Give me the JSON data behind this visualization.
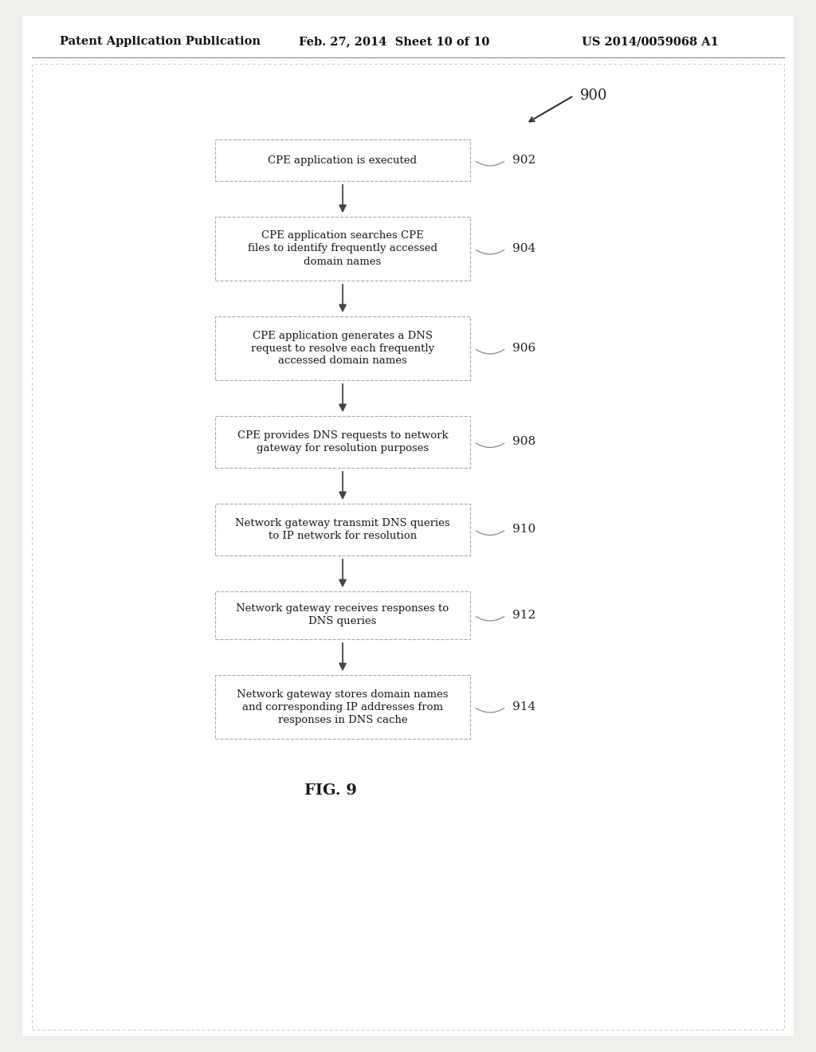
{
  "background_color": "#f0eeea",
  "page_background": "#ffffff",
  "header_text": "Patent Application Publication",
  "header_date": "Feb. 27, 2014  Sheet 10 of 10",
  "header_patent": "US 2014/0059068 A1",
  "figure_label": "FIG. 9",
  "diagram_number": "900",
  "boxes": [
    {
      "id": "902",
      "lines": [
        "CPE application is executed"
      ]
    },
    {
      "id": "904",
      "lines": [
        "CPE application searches CPE",
        "files to identify frequently accessed",
        "domain names"
      ]
    },
    {
      "id": "906",
      "lines": [
        "CPE application generates a DNS",
        "request to resolve each frequently",
        "accessed domain names"
      ]
    },
    {
      "id": "908",
      "lines": [
        "CPE provides DNS requests to network",
        "gateway for resolution purposes"
      ]
    },
    {
      "id": "910",
      "lines": [
        "Network gateway transmit DNS queries",
        "to IP network for resolution"
      ]
    },
    {
      "id": "912",
      "lines": [
        "Network gateway receives responses to",
        "DNS queries"
      ]
    },
    {
      "id": "914",
      "lines": [
        "Network gateway stores domain names",
        "and corresponding IP addresses from",
        "responses in DNS cache"
      ]
    }
  ],
  "box_fill": "#ffffff",
  "box_edge": "#aaaaaa",
  "text_color": "#1a1a1a",
  "arrow_color": "#444444",
  "label_color": "#222222",
  "header_color": "#111111"
}
